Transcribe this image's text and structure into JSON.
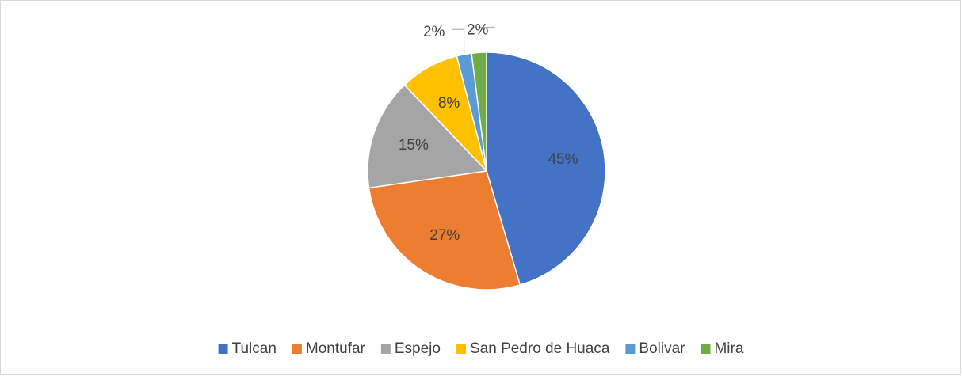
{
  "chart_data": {
    "type": "pie",
    "categories": [
      "Tulcan",
      "Montufar",
      "Espejo",
      "San Pedro de Huaca",
      "Bolivar",
      "Mira"
    ],
    "values": [
      45,
      27,
      15,
      8,
      2,
      2
    ],
    "value_labels": [
      "45%",
      "27%",
      "15%",
      "8%",
      "2%",
      "2%"
    ],
    "colors": [
      "#4472c4",
      "#ed7d31",
      "#a5a5a5",
      "#ffc000",
      "#5b9bd5",
      "#70ad47"
    ],
    "legend": "bottom"
  }
}
